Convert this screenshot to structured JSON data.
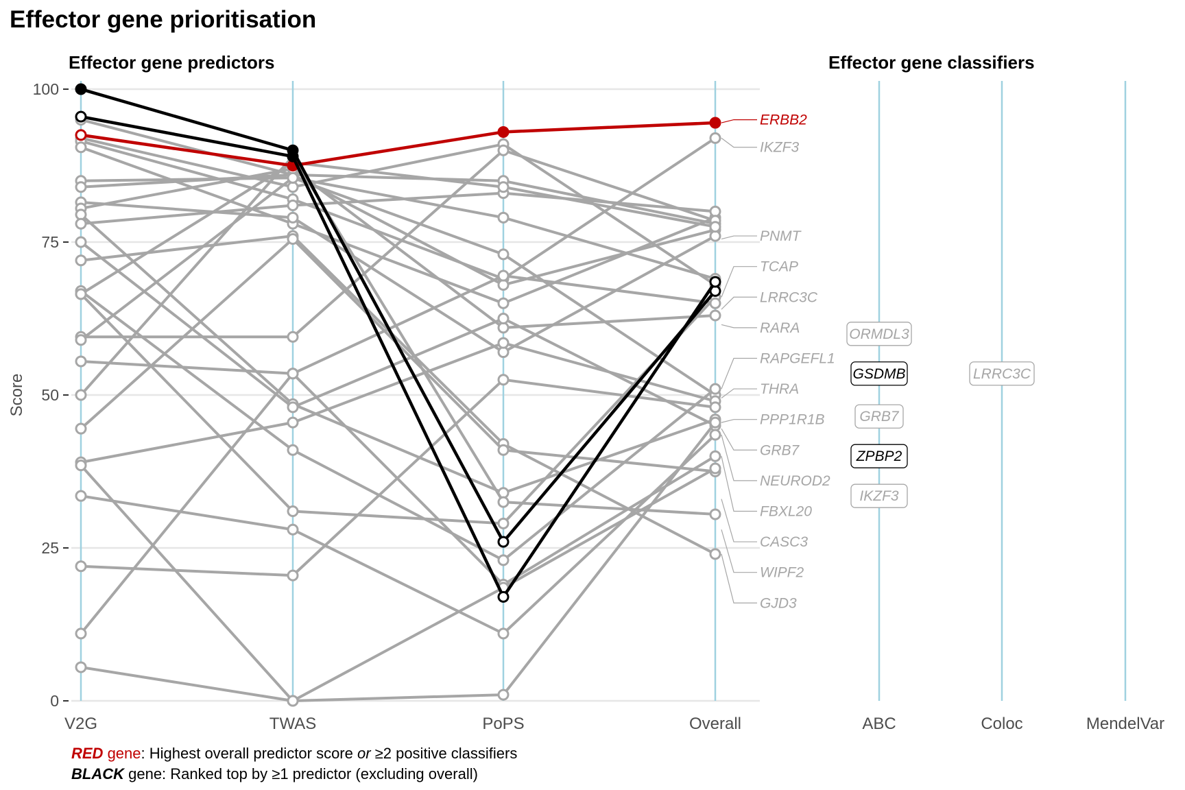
{
  "chart_data": {
    "type": "line",
    "title": "Effector gene prioritisation",
    "left_panel_title": "Effector gene predictors",
    "right_panel_title": "Effector gene classifiers",
    "ylabel": "Score",
    "ylim": [
      0,
      100
    ],
    "yticks": [
      0,
      25,
      50,
      75,
      100
    ],
    "predictors": [
      "V2G",
      "TWAS",
      "PoPS",
      "Overall"
    ],
    "classifiers": [
      "ABC",
      "Coloc",
      "MendelVar"
    ],
    "colors": {
      "red": "#c00000",
      "black": "#000000",
      "grey": "#a6a6a6",
      "axis": "#9fd1e0",
      "grid": "#e6e6e6"
    },
    "series": [
      {
        "name": "ERBB2",
        "group": "red",
        "values": [
          92.5,
          87.5,
          93,
          94.5
        ]
      },
      {
        "group": "black",
        "values": [
          100,
          90,
          26,
          67
        ]
      },
      {
        "group": "black",
        "values": [
          95.5,
          89,
          17,
          68.5
        ]
      },
      {
        "group": "grey",
        "values": [
          95,
          86,
          85,
          78
        ]
      },
      {
        "group": "grey",
        "values": [
          92,
          84,
          91,
          68
        ]
      },
      {
        "group": "grey",
        "values": [
          91.5,
          82,
          69,
          92
        ]
      },
      {
        "group": "grey",
        "values": [
          90.5,
          78,
          65,
          79
        ]
      },
      {
        "group": "grey",
        "values": [
          85,
          85.5,
          73,
          50
        ]
      },
      {
        "group": "grey",
        "values": [
          84,
          86,
          68,
          77
        ]
      },
      {
        "group": "grey",
        "values": [
          81.5,
          79,
          57,
          76
        ]
      },
      {
        "group": "grey",
        "values": [
          80.5,
          87,
          61,
          63
        ]
      },
      {
        "group": "grey",
        "values": [
          79.5,
          48.5,
          34,
          46
        ]
      },
      {
        "group": "grey",
        "values": [
          78,
          81,
          83,
          80
        ]
      },
      {
        "group": "grey",
        "values": [
          75,
          48,
          62.5,
          45
        ]
      },
      {
        "group": "grey",
        "values": [
          72,
          76,
          42,
          24
        ]
      },
      {
        "group": "grey",
        "values": [
          67,
          41,
          23,
          51
        ]
      },
      {
        "group": "grey",
        "values": [
          66.5,
          31,
          29,
          66
        ]
      },
      {
        "group": "grey",
        "values": [
          59.5,
          59.5,
          90,
          78.5
        ]
      },
      {
        "group": "grey",
        "values": [
          59,
          85.5,
          79,
          69
        ]
      },
      {
        "group": "grey",
        "values": [
          55.5,
          53.5,
          69.5,
          65
        ]
      },
      {
        "group": "grey",
        "values": [
          50,
          89,
          32.5,
          30.5
        ]
      },
      {
        "group": "grey",
        "values": [
          44.5,
          75.5,
          41,
          37.5
        ]
      },
      {
        "group": "grey",
        "values": [
          39,
          45.5,
          58.5,
          49
        ]
      },
      {
        "group": "grey",
        "values": [
          33.5,
          28,
          11,
          43.5
        ]
      },
      {
        "group": "grey",
        "values": [
          22,
          20.5,
          52.5,
          48
        ]
      },
      {
        "group": "grey",
        "values": [
          11,
          53.5,
          19,
          40
        ]
      },
      {
        "group": "grey",
        "values": [
          5.5,
          0,
          1,
          45.5
        ]
      },
      {
        "group": "grey",
        "values": [
          38.5,
          0,
          18.5,
          38
        ]
      },
      {
        "group": "grey",
        "values": [
          66.5,
          88,
          84,
          77.5
        ]
      }
    ],
    "gene_labels": [
      {
        "text": "ERBB2",
        "group": "red",
        "overall": 94.5,
        "label_y": 95
      },
      {
        "text": "IKZF3",
        "group": "grey",
        "overall": 92,
        "label_y": 90.5
      },
      {
        "text": "PNMT",
        "group": "grey",
        "overall": 75.5,
        "label_y": 76
      },
      {
        "text": "TCAP",
        "group": "grey",
        "overall": 66,
        "label_y": 71
      },
      {
        "text": "LRRC3C",
        "group": "grey",
        "overall": 64,
        "label_y": 66
      },
      {
        "text": "RARA",
        "group": "grey",
        "overall": 61.5,
        "label_y": 61
      },
      {
        "text": "RAPGEFL1",
        "group": "grey",
        "overall": 51,
        "label_y": 56
      },
      {
        "text": "THRA",
        "group": "grey",
        "overall": 49.5,
        "label_y": 51
      },
      {
        "text": "PPP1R1B",
        "group": "grey",
        "overall": 45.5,
        "label_y": 46
      },
      {
        "text": "GRB7",
        "group": "grey",
        "overall": 44.5,
        "label_y": 41
      },
      {
        "text": "NEUROD2",
        "group": "grey",
        "overall": 43.5,
        "label_y": 36
      },
      {
        "text": "FBXL20",
        "group": "grey",
        "overall": 40,
        "label_y": 31
      },
      {
        "text": "CASC3",
        "group": "grey",
        "overall": 33,
        "label_y": 26
      },
      {
        "text": "WIPF2",
        "group": "grey",
        "overall": 28,
        "label_y": 21
      },
      {
        "text": "GJD3",
        "group": "grey",
        "overall": 24,
        "label_y": 16
      }
    ],
    "classifier_labels": [
      {
        "text": "ORMDL3",
        "classifier": "ABC",
        "y": 60,
        "group": "grey"
      },
      {
        "text": "GSDMB",
        "classifier": "ABC",
        "y": 53.5,
        "group": "black"
      },
      {
        "text": "GRB7",
        "classifier": "ABC",
        "y": 46.5,
        "group": "grey"
      },
      {
        "text": "ZPBP2",
        "classifier": "ABC",
        "y": 40,
        "group": "black"
      },
      {
        "text": "IKZF3",
        "classifier": "ABC",
        "y": 33.5,
        "group": "grey"
      },
      {
        "text": "LRRC3C",
        "classifier": "Coloc",
        "y": 53.5,
        "group": "grey"
      }
    ]
  },
  "footnote": {
    "line1_bold": "RED",
    "line1_colored": " gene",
    "line1_rest": ": Highest overall predictor score ",
    "line1_or": "or",
    "line1_end": " ≥2 positive classifiers",
    "line2_bold": "BLACK",
    "line2_rest": " gene: Ranked top by ≥1 predictor (excluding overall)"
  }
}
